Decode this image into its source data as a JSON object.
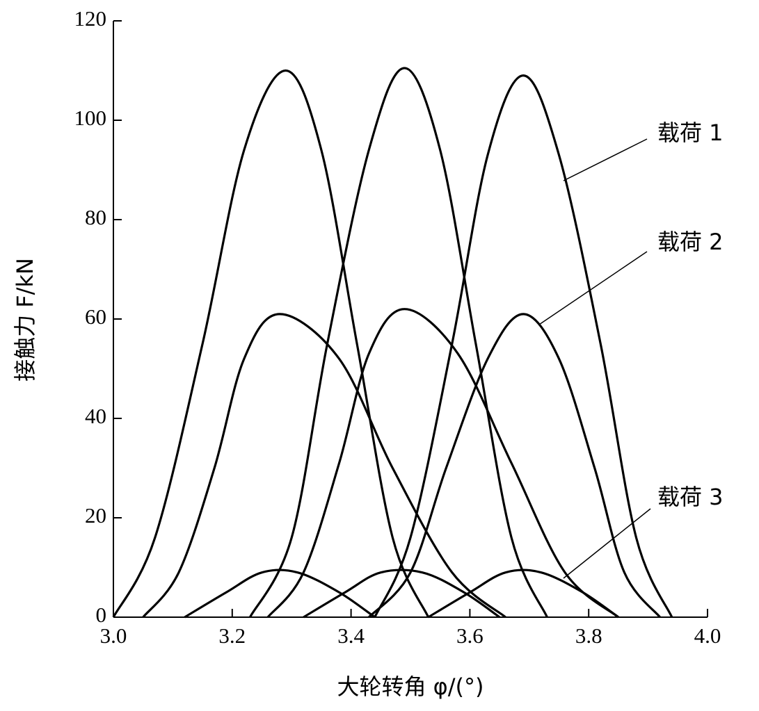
{
  "chart_data": {
    "type": "line",
    "x_label": "大轮转角 φ/(°)",
    "y_label": "接触力 F/kN",
    "xlim": [
      3.0,
      4.0
    ],
    "xticks": [
      {
        "value": 3.0,
        "label": "3.0"
      },
      {
        "value": 3.2,
        "label": "3.2"
      },
      {
        "value": 3.4,
        "label": "3.4"
      },
      {
        "value": 3.6,
        "label": "3.6"
      },
      {
        "value": 3.8,
        "label": "3.8"
      },
      {
        "value": 4.0,
        "label": "4.0"
      }
    ],
    "ylim": [
      0,
      120
    ],
    "yticks": [
      0,
      20,
      40,
      60,
      80,
      100,
      120
    ],
    "series": [
      {
        "name": "载荷 1",
        "color": "#000000",
        "curves": [
          {
            "x": [
              3.0,
              3.07,
              3.15,
              3.22,
              3.29,
              3.35,
              3.41,
              3.47,
              3.53
            ],
            "values": [
              0,
              16,
              55,
              94,
              110,
              94,
              55,
              16,
              0
            ]
          },
          {
            "x": [
              3.23,
              3.3,
              3.36,
              3.43,
              3.49,
              3.55,
              3.61,
              3.67,
              3.73
            ],
            "values": [
              0,
              16,
              55,
              94,
              110.5,
              94,
              55,
              16,
              0
            ]
          },
          {
            "x": [
              3.44,
              3.5,
              3.57,
              3.63,
              3.69,
              3.75,
              3.82,
              3.88,
              3.94
            ],
            "values": [
              0,
              16,
              55,
              93,
              109,
              93,
              55,
              16,
              0
            ]
          }
        ]
      },
      {
        "name": "载荷 2",
        "color": "#000000",
        "curves": [
          {
            "x": [
              3.05,
              3.11,
              3.17,
              3.22,
              3.28,
              3.38,
              3.47,
              3.57,
              3.66
            ],
            "values": [
              0,
              9,
              30,
              52,
              61,
              52,
              30,
              9,
              0
            ]
          },
          {
            "x": [
              3.26,
              3.32,
              3.38,
              3.43,
              3.49,
              3.58,
              3.67,
              3.76,
              3.85
            ],
            "values": [
              0,
              9,
              31,
              53,
              62,
              53,
              31,
              9,
              0
            ]
          },
          {
            "x": [
              3.43,
              3.5,
              3.56,
              3.63,
              3.69,
              3.75,
              3.81,
              3.86,
              3.92
            ],
            "values": [
              0,
              9,
              30,
              52,
              61,
              52,
              30,
              9,
              0
            ]
          }
        ]
      },
      {
        "name": "载荷 3",
        "color": "#000000",
        "curves": [
          {
            "x": [
              3.12,
              3.19,
              3.25,
              3.31,
              3.38,
              3.44
            ],
            "values": [
              0,
              5,
              9,
              9,
              5,
              0
            ]
          },
          {
            "x": [
              3.32,
              3.39,
              3.45,
              3.52,
              3.59,
              3.65
            ],
            "values": [
              0,
              5,
              9,
              9,
              5,
              0
            ]
          },
          {
            "x": [
              3.53,
              3.6,
              3.66,
              3.72,
              3.79,
              3.85
            ],
            "values": [
              0,
              5,
              9,
              9,
              5,
              0
            ]
          }
        ]
      }
    ]
  }
}
